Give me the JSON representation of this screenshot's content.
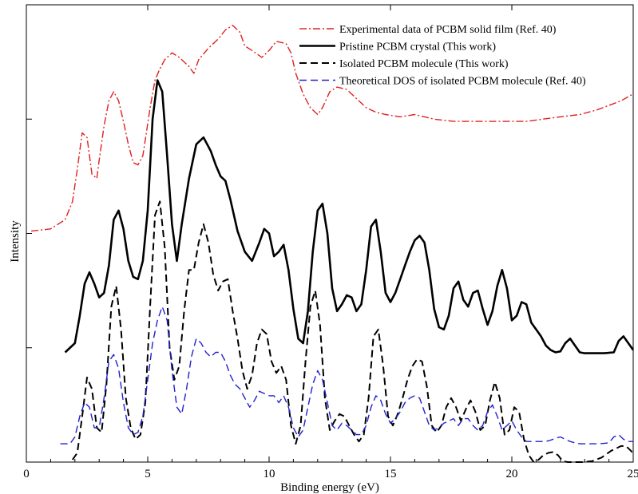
{
  "chart_data": {
    "type": "line",
    "xlabel": "Binding energy (eV)",
    "ylabel": "Intensity",
    "xlim": [
      0,
      25
    ],
    "ylim": [
      0,
      100
    ],
    "x_ticks": [
      "0",
      "5",
      "10",
      "15",
      "20",
      "25"
    ],
    "grid": false,
    "legend_position": "top-right",
    "series": [
      {
        "name": "Experimental data of PCBM solid film (Ref. 40)",
        "color": "#e02020",
        "dash": "dash-dot",
        "x": [
          0.2,
          1.0,
          1.6,
          1.9,
          2.1,
          2.3,
          2.5,
          2.7,
          2.9,
          3.0,
          3.2,
          3.4,
          3.6,
          3.8,
          4.0,
          4.2,
          4.4,
          4.6,
          4.8,
          4.9,
          5.1,
          5.3,
          5.5,
          5.7,
          6.0,
          6.3,
          6.7,
          6.9,
          7.1,
          7.5,
          7.9,
          8.2,
          8.5,
          8.8,
          9.0,
          9.3,
          9.7,
          10.0,
          10.3,
          10.7,
          10.9,
          11.1,
          11.4,
          11.7,
          12.0,
          12.2,
          12.5,
          12.8,
          13.2,
          13.6,
          14.0,
          14.4,
          14.8,
          15.4,
          16.0,
          16.8,
          17.6,
          18.4,
          19.5,
          20.6,
          21.0,
          22.0,
          22.8,
          23.5,
          24.0,
          24.5,
          25.0
        ],
        "y": [
          50.5,
          51.0,
          53.0,
          57.0,
          64.0,
          72.0,
          71.0,
          63.0,
          62.0,
          66.0,
          73.5,
          79.0,
          81.0,
          79.0,
          74.5,
          69.5,
          65.5,
          65.0,
          67.0,
          70.5,
          77.5,
          83.5,
          86.0,
          88.0,
          89.5,
          88.5,
          86.5,
          85.0,
          88.0,
          90.5,
          92.5,
          94.5,
          95.5,
          94.0,
          91.0,
          90.0,
          88.5,
          90.0,
          92.0,
          91.5,
          89.5,
          85.0,
          80.5,
          77.5,
          76.0,
          77.5,
          81.0,
          82.0,
          81.5,
          79.5,
          77.5,
          76.5,
          76.0,
          75.5,
          76.0,
          75.0,
          74.5,
          74.5,
          74.5,
          74.5,
          74.8,
          75.5,
          76.0,
          77.0,
          78.0,
          79.0,
          80.5
        ]
      },
      {
        "name": "Pristine PCBM crystal (This work)",
        "color": "#000000",
        "dash": "solid",
        "x": [
          1.6,
          2.0,
          2.2,
          2.4,
          2.6,
          2.8,
          3.0,
          3.2,
          3.4,
          3.6,
          3.8,
          4.0,
          4.2,
          4.4,
          4.6,
          4.8,
          5.0,
          5.2,
          5.4,
          5.6,
          5.8,
          6.0,
          6.2,
          6.4,
          6.7,
          7.0,
          7.3,
          7.6,
          7.8,
          8.0,
          8.2,
          8.4,
          8.7,
          9.0,
          9.3,
          9.6,
          9.8,
          10.0,
          10.2,
          10.4,
          10.6,
          10.8,
          11.0,
          11.2,
          11.4,
          11.6,
          11.8,
          12.0,
          12.2,
          12.4,
          12.6,
          12.8,
          13.0,
          13.2,
          13.4,
          13.6,
          13.8,
          14.0,
          14.2,
          14.4,
          14.6,
          14.8,
          15.0,
          15.2,
          15.4,
          15.6,
          15.8,
          16.0,
          16.2,
          16.4,
          16.6,
          16.8,
          17.0,
          17.2,
          17.4,
          17.6,
          17.8,
          18.0,
          18.2,
          18.4,
          18.6,
          18.8,
          19.0,
          19.2,
          19.4,
          19.6,
          19.8,
          20.0,
          20.2,
          20.4,
          20.6,
          20.8,
          21.0,
          21.2,
          21.4,
          21.6,
          21.8,
          22.0,
          22.2,
          22.4,
          22.6,
          22.8,
          23.0,
          23.4,
          23.8,
          24.2,
          24.4,
          24.6,
          24.8,
          25.0
        ],
        "y": [
          24.0,
          26.0,
          32.0,
          39.0,
          41.5,
          39.0,
          36.0,
          37.0,
          43.0,
          53.0,
          55.0,
          51.0,
          44.0,
          40.5,
          40.0,
          44.0,
          55.0,
          75.0,
          83.5,
          81.0,
          67.0,
          52.0,
          44.0,
          52.0,
          62.0,
          69.5,
          71.0,
          68.0,
          65.0,
          62.5,
          61.5,
          57.5,
          50.5,
          46.0,
          44.0,
          48.0,
          51.0,
          50.0,
          45.0,
          46.0,
          47.5,
          42.0,
          33.5,
          27.0,
          26.0,
          33.0,
          46.0,
          55.0,
          56.5,
          50.0,
          38.0,
          33.0,
          34.5,
          36.5,
          36.0,
          33.0,
          34.5,
          42.0,
          51.5,
          53.0,
          46.0,
          37.0,
          35.0,
          37.0,
          40.0,
          43.0,
          46.0,
          48.5,
          49.5,
          48.0,
          42.0,
          33.5,
          29.5,
          29.0,
          32.0,
          38.0,
          39.5,
          35.5,
          34.0,
          37.0,
          37.5,
          33.5,
          30.0,
          33.0,
          38.5,
          42.0,
          38.0,
          31.0,
          32.0,
          35.0,
          34.5,
          30.5,
          29.0,
          27.5,
          25.5,
          24.5,
          24.0,
          24.2,
          26.0,
          27.0,
          25.5,
          24.0,
          23.8,
          23.8,
          23.8,
          24.0,
          26.5,
          27.5,
          26.0,
          24.5
        ]
      },
      {
        "name": "Isolated PCBM molecule (This work)",
        "color": "#000000",
        "dash": "dashed",
        "x": [
          1.9,
          2.1,
          2.3,
          2.5,
          2.7,
          2.9,
          3.1,
          3.3,
          3.5,
          3.7,
          3.9,
          4.1,
          4.3,
          4.5,
          4.7,
          4.9,
          5.1,
          5.3,
          5.5,
          5.7,
          5.9,
          6.1,
          6.3,
          6.5,
          6.7,
          6.9,
          7.1,
          7.3,
          7.5,
          7.7,
          7.9,
          8.1,
          8.3,
          8.5,
          8.7,
          8.9,
          9.1,
          9.3,
          9.5,
          9.7,
          9.9,
          10.1,
          10.3,
          10.5,
          10.7,
          10.9,
          11.1,
          11.3,
          11.5,
          11.7,
          11.9,
          12.1,
          12.3,
          12.5,
          12.7,
          12.9,
          13.1,
          13.3,
          13.5,
          13.7,
          13.9,
          14.1,
          14.3,
          14.5,
          14.7,
          14.9,
          15.1,
          15.3,
          15.5,
          15.7,
          15.9,
          16.1,
          16.3,
          16.5,
          16.7,
          16.9,
          17.1,
          17.3,
          17.5,
          17.7,
          17.9,
          18.1,
          18.3,
          18.5,
          18.7,
          18.9,
          19.1,
          19.3,
          19.5,
          19.7,
          19.9,
          20.1,
          20.3,
          20.5,
          20.7,
          20.9,
          21.1,
          21.3,
          21.5,
          21.7,
          21.9,
          22.1,
          22.3,
          22.5,
          22.7,
          22.9,
          23.3,
          23.7,
          24.1,
          24.5,
          24.7,
          24.9,
          25.0
        ],
        "y": [
          0.5,
          2.0,
          10.0,
          18.5,
          16.0,
          7.5,
          6.5,
          17.0,
          34.0,
          38.5,
          29.0,
          14.0,
          7.5,
          5.0,
          6.0,
          13.0,
          34.0,
          54.0,
          57.0,
          47.0,
          25.0,
          18.0,
          21.0,
          33.0,
          42.0,
          42.0,
          48.0,
          52.0,
          48.0,
          41.0,
          37.5,
          39.5,
          40.0,
          33.0,
          27.0,
          20.0,
          16.0,
          19.0,
          26.0,
          29.0,
          28.0,
          22.0,
          19.5,
          21.0,
          18.0,
          8.0,
          4.0,
          8.0,
          22.0,
          34.0,
          37.5,
          30.0,
          14.0,
          7.0,
          9.0,
          10.5,
          10.0,
          8.0,
          6.0,
          4.5,
          6.0,
          14.0,
          27.5,
          29.0,
          21.0,
          10.0,
          8.0,
          10.5,
          14.0,
          18.0,
          21.0,
          22.5,
          22.0,
          16.5,
          8.0,
          6.5,
          8.0,
          12.0,
          14.0,
          12.0,
          9.0,
          11.5,
          13.5,
          11.0,
          7.0,
          8.0,
          13.5,
          17.5,
          14.0,
          6.0,
          7.0,
          12.0,
          11.0,
          5.0,
          1.5,
          0.0,
          0.5,
          1.5,
          2.0,
          2.2,
          1.5,
          0.2,
          0.0,
          0.0,
          0.0,
          0.0,
          0.2,
          1.0,
          2.5,
          3.5,
          3.5,
          2.5,
          1.8
        ]
      },
      {
        "name": "Theoretical DOS of isolated PCBM molecule (Ref. 40)",
        "color": "#2020d0",
        "dash": "dashed",
        "x": [
          1.4,
          1.8,
          2.0,
          2.2,
          2.4,
          2.6,
          2.8,
          3.0,
          3.2,
          3.4,
          3.6,
          3.8,
          4.0,
          4.2,
          4.4,
          4.6,
          4.8,
          5.0,
          5.2,
          5.4,
          5.6,
          5.8,
          6.0,
          6.2,
          6.4,
          6.6,
          6.8,
          7.0,
          7.2,
          7.4,
          7.6,
          7.8,
          8.0,
          8.2,
          8.4,
          8.6,
          8.8,
          9.0,
          9.2,
          9.4,
          9.6,
          9.8,
          10.0,
          10.2,
          10.4,
          10.6,
          10.8,
          11.0,
          11.2,
          11.4,
          11.6,
          11.8,
          12.0,
          12.2,
          12.4,
          12.6,
          12.8,
          13.0,
          13.2,
          13.4,
          13.6,
          13.8,
          14.0,
          14.2,
          14.4,
          14.6,
          14.8,
          15.0,
          15.2,
          15.4,
          15.6,
          15.8,
          16.0,
          16.2,
          16.4,
          16.6,
          16.8,
          17.0,
          17.2,
          17.4,
          17.6,
          17.8,
          18.0,
          18.2,
          18.4,
          18.6,
          18.8,
          19.0,
          19.2,
          19.4,
          19.6,
          19.8,
          20.0,
          20.2,
          20.4,
          20.6,
          20.8,
          21.0,
          21.2,
          21.4,
          21.6,
          21.8,
          22.0,
          22.2,
          22.4,
          22.6,
          22.8,
          23.2,
          23.6,
          24.0,
          24.2,
          24.4,
          24.6,
          24.8,
          25.0
        ],
        "y": [
          4.0,
          4.0,
          5.5,
          10.0,
          13.0,
          12.0,
          7.5,
          7.5,
          14.0,
          22.0,
          23.5,
          20.5,
          13.0,
          7.5,
          6.0,
          6.5,
          10.0,
          18.0,
          26.0,
          31.0,
          34.0,
          31.0,
          20.0,
          12.0,
          10.5,
          16.0,
          23.0,
          27.0,
          26.0,
          24.0,
          23.0,
          24.0,
          24.0,
          22.0,
          19.0,
          17.0,
          16.0,
          14.0,
          12.0,
          13.5,
          15.5,
          15.0,
          14.5,
          14.5,
          13.0,
          14.5,
          12.0,
          7.5,
          5.5,
          7.0,
          12.0,
          17.0,
          20.0,
          18.0,
          13.0,
          8.0,
          7.0,
          8.5,
          8.0,
          7.0,
          6.0,
          6.0,
          8.0,
          12.0,
          14.5,
          13.5,
          10.5,
          8.5,
          9.5,
          11.0,
          13.0,
          14.0,
          14.5,
          14.0,
          11.0,
          8.0,
          7.0,
          7.5,
          8.5,
          9.0,
          9.5,
          8.0,
          9.5,
          9.5,
          8.0,
          7.0,
          8.0,
          11.0,
          12.5,
          10.0,
          7.0,
          8.0,
          9.0,
          7.0,
          5.5,
          4.5,
          4.5,
          4.5,
          4.5,
          4.5,
          4.8,
          5.2,
          5.5,
          5.0,
          4.5,
          4.2,
          4.0,
          4.0,
          4.0,
          4.2,
          5.5,
          6.0,
          5.0,
          4.5,
          4.5
        ]
      }
    ]
  }
}
